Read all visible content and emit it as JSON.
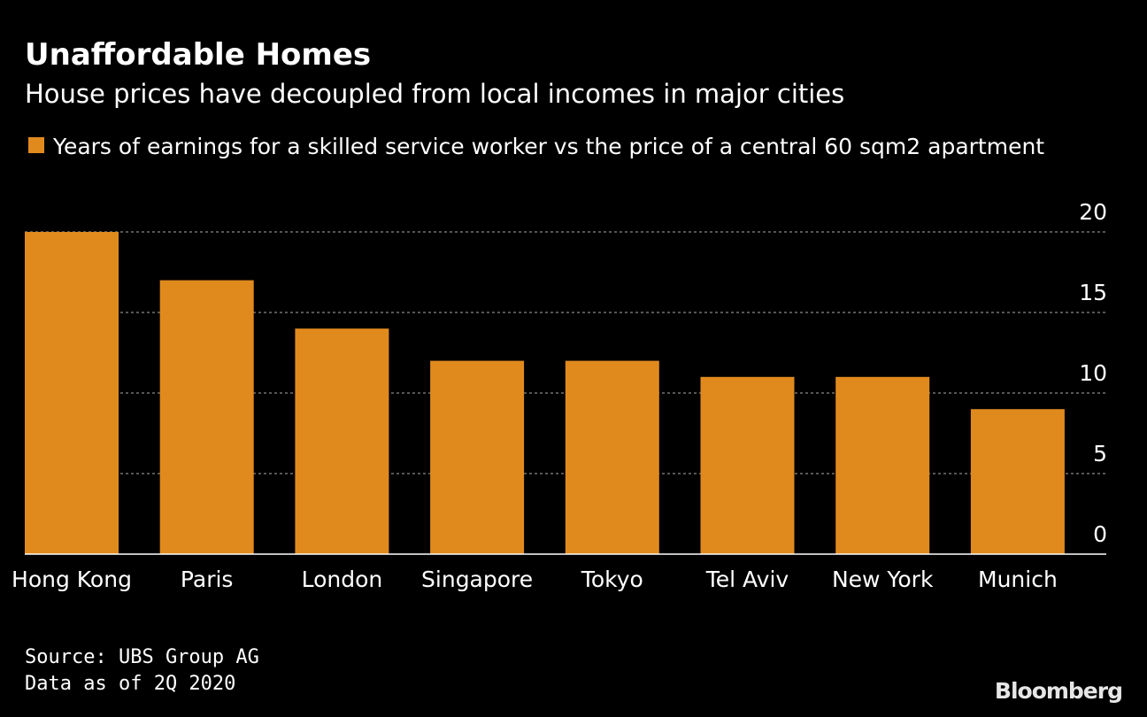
{
  "title": "Unaffordable Homes",
  "subtitle": "House prices have decoupled from local incomes in major cities",
  "legend": {
    "label": "Years of earnings for a skilled service worker vs the price of a central 60 sqm2 apartment",
    "color": "#e08a1e"
  },
  "source_lines": [
    "Source: UBS Group AG",
    "Data as of 2Q 2020"
  ],
  "brand": "Bloomberg",
  "colors": {
    "background": "#000000",
    "bar": "#e08a1e",
    "grid": "#8a8a8a",
    "text": "#ffffff"
  },
  "chart_data": {
    "type": "bar",
    "categories": [
      "Hong Kong",
      "Paris",
      "London",
      "Singapore",
      "Tokyo",
      "Tel Aviv",
      "New York",
      "Munich"
    ],
    "series": [
      {
        "name": "Years of earnings for a skilled service worker vs the price of a central 60 sqm2 apartment",
        "values": [
          20,
          17,
          14,
          12,
          12,
          11,
          11,
          9
        ]
      }
    ],
    "ylim": [
      0,
      20
    ],
    "yticks": [
      0,
      5,
      10,
      15,
      20
    ],
    "y_axis_position": "right",
    "grid": true,
    "grid_style": "dotted",
    "legend_position": "top-left",
    "xlabel": "",
    "ylabel": ""
  }
}
